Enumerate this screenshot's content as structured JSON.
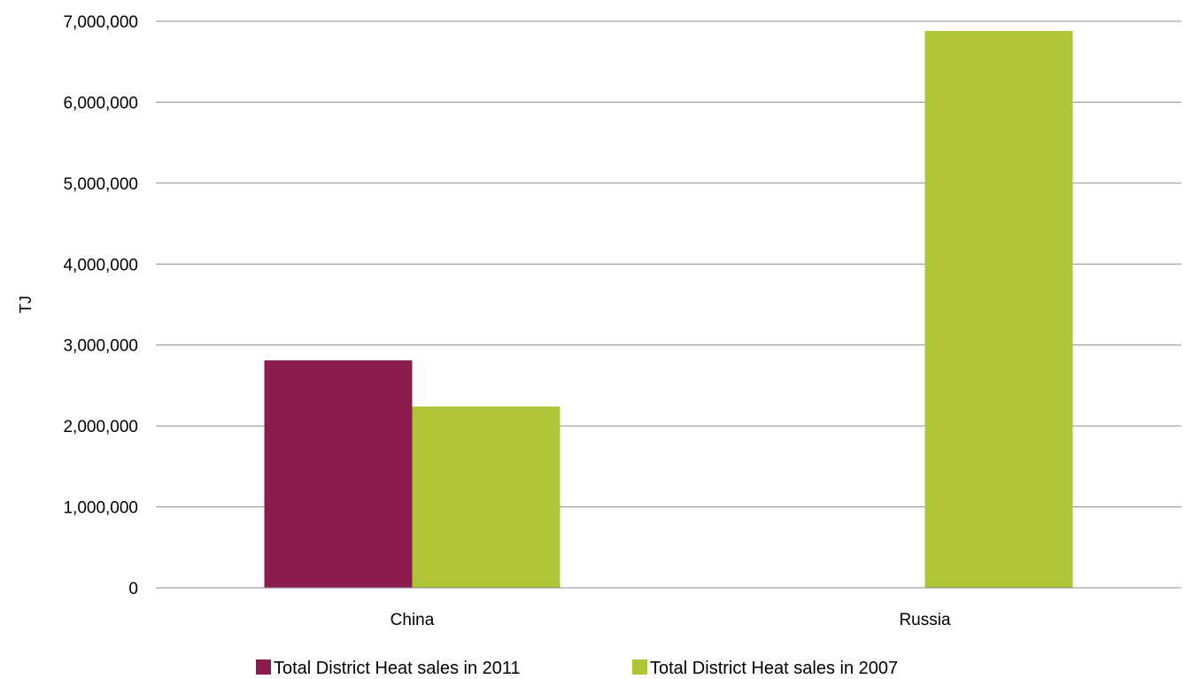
{
  "chart_data": {
    "type": "bar",
    "title": "",
    "xlabel": "",
    "ylabel": "TJ",
    "ylim": [
      0,
      7000000
    ],
    "y_ticks": [
      0,
      1000000,
      2000000,
      3000000,
      4000000,
      5000000,
      6000000,
      7000000
    ],
    "y_tick_labels": [
      "0",
      "1,000,000",
      "2,000,000",
      "3,000,000",
      "4,000,000",
      "5,000,000",
      "6,000,000",
      "7,000,000"
    ],
    "categories": [
      "China",
      "Russia"
    ],
    "series": [
      {
        "name": "Total District Heat sales in 2011",
        "color": "#8B1C4E",
        "values": [
          2810000,
          null
        ]
      },
      {
        "name": "Total District Heat sales in 2007",
        "color": "#AFC537",
        "values": [
          2240000,
          6880000
        ]
      }
    ],
    "grid": true,
    "legend": "bottom"
  }
}
